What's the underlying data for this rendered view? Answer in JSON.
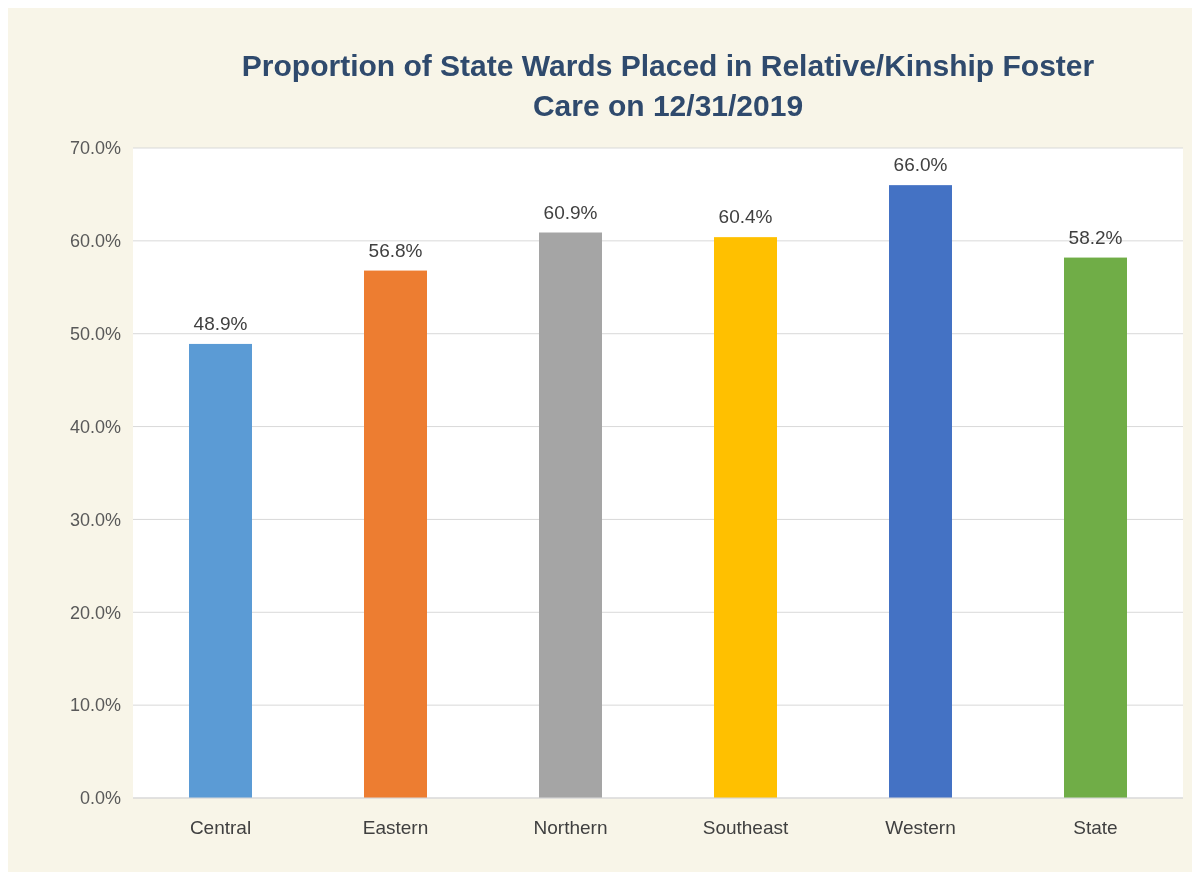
{
  "chart_data": {
    "type": "bar",
    "title": "Proportion of State Wards Placed in Relative/Kinship Foster Care on 12/31/2019",
    "categories": [
      "Central",
      "Eastern",
      "Northern",
      "Southeast",
      "Western",
      "State"
    ],
    "values": [
      48.9,
      56.8,
      60.9,
      60.4,
      66.0,
      58.2
    ],
    "colors": [
      "#5b9bd5",
      "#ed7d31",
      "#a5a5a5",
      "#ffc000",
      "#4472c4",
      "#70ad47"
    ],
    "value_labels": [
      "48.9%",
      "56.8%",
      "60.9%",
      "60.4%",
      "66.0%",
      "58.2%"
    ],
    "ylim": [
      0,
      70
    ],
    "yticks": [
      {
        "value": 0,
        "label": "0.0%"
      },
      {
        "value": 10,
        "label": "10.0%"
      },
      {
        "value": 20,
        "label": "20.0%"
      },
      {
        "value": 30,
        "label": "30.0%"
      },
      {
        "value": 40,
        "label": "40.0%"
      },
      {
        "value": 50,
        "label": "50.0%"
      },
      {
        "value": 60,
        "label": "60.0%"
      },
      {
        "value": 70,
        "label": "70.0%"
      }
    ],
    "grid": "y"
  }
}
